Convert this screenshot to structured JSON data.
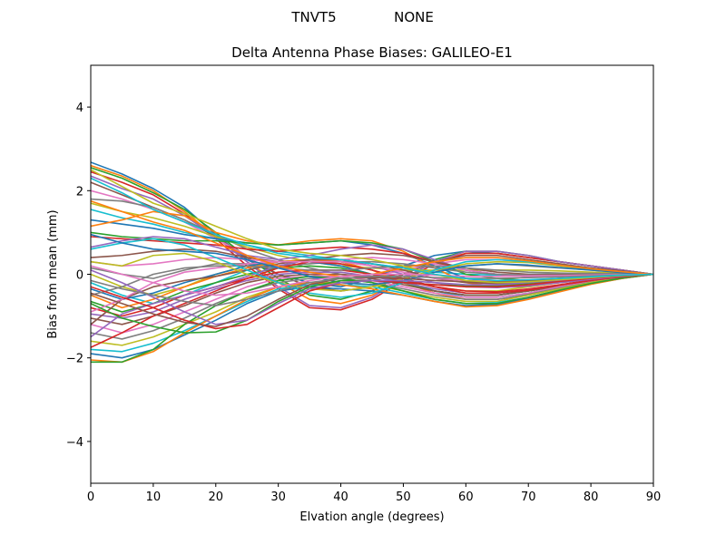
{
  "figure": {
    "suptitle_left": "TNVT5",
    "suptitle_right": "NONE"
  },
  "chart_data": {
    "type": "line",
    "title": "Delta Antenna Phase Biases: GALILEO-E1",
    "xlabel": "Elvation angle (degrees)",
    "ylabel": "Bias from mean (mm)",
    "xlim": [
      0,
      90
    ],
    "ylim": [
      -5,
      5
    ],
    "xticks": [
      0,
      10,
      20,
      30,
      40,
      50,
      60,
      70,
      80,
      90
    ],
    "yticks": [
      -4,
      -2,
      0,
      2,
      4
    ],
    "grid": false,
    "legend": "none",
    "x": [
      0,
      5,
      10,
      15,
      20,
      25,
      30,
      35,
      40,
      45,
      50,
      55,
      60,
      65,
      70,
      75,
      80,
      85,
      90
    ],
    "colors": [
      "#1f77b4",
      "#ff7f0e",
      "#2ca02c",
      "#d62728",
      "#9467bd",
      "#8c564b",
      "#e377c2",
      "#7f7f7f",
      "#bcbd22",
      "#17becf"
    ],
    "series": [
      {
        "values": [
          2.68,
          2.4,
          2.05,
          1.6,
          0.95,
          0.35,
          0.0,
          -0.2,
          -0.3,
          -0.1,
          0.2,
          0.45,
          0.55,
          0.5,
          0.4,
          0.3,
          0.2,
          0.1,
          0.0
        ]
      },
      {
        "values": [
          2.6,
          2.35,
          2.0,
          1.5,
          0.9,
          0.3,
          -0.2,
          -0.6,
          -0.7,
          -0.5,
          -0.1,
          0.3,
          0.5,
          0.5,
          0.4,
          0.3,
          0.2,
          0.1,
          0.0
        ]
      },
      {
        "values": [
          2.55,
          2.3,
          1.95,
          1.55,
          1.0,
          0.4,
          -0.1,
          -0.5,
          -0.6,
          -0.4,
          0.0,
          0.35,
          0.55,
          0.55,
          0.45,
          0.3,
          0.2,
          0.1,
          0.0
        ]
      },
      {
        "values": [
          2.45,
          2.2,
          1.9,
          1.45,
          0.85,
          0.2,
          -0.35,
          -0.8,
          -0.85,
          -0.6,
          -0.15,
          0.25,
          0.5,
          0.5,
          0.4,
          0.3,
          0.2,
          0.1,
          0.0
        ]
      },
      {
        "values": [
          2.35,
          2.05,
          1.8,
          1.4,
          0.9,
          0.3,
          -0.3,
          -0.75,
          -0.8,
          -0.55,
          -0.1,
          0.3,
          0.55,
          0.55,
          0.45,
          0.3,
          0.2,
          0.1,
          0.0
        ]
      },
      {
        "values": [
          2.2,
          1.9,
          1.6,
          1.3,
          0.9,
          0.4,
          0.0,
          -0.3,
          -0.4,
          -0.3,
          0.0,
          0.3,
          0.45,
          0.45,
          0.35,
          0.25,
          0.15,
          0.08,
          0.0
        ]
      },
      {
        "values": [
          2.0,
          1.8,
          1.55,
          1.25,
          0.85,
          0.45,
          0.15,
          0.0,
          -0.1,
          -0.05,
          0.1,
          0.25,
          0.35,
          0.35,
          0.3,
          0.2,
          0.12,
          0.06,
          0.0
        ]
      },
      {
        "values": [
          1.8,
          1.75,
          1.6,
          1.3,
          0.95,
          0.6,
          0.35,
          0.15,
          0.0,
          -0.05,
          0.0,
          0.1,
          0.2,
          0.25,
          0.2,
          0.15,
          0.1,
          0.05,
          0.0
        ]
      },
      {
        "values": [
          1.7,
          1.5,
          1.35,
          1.15,
          0.9,
          0.65,
          0.45,
          0.3,
          0.2,
          0.15,
          0.1,
          0.1,
          0.1,
          0.1,
          0.1,
          0.08,
          0.05,
          0.03,
          0.0
        ]
      },
      {
        "values": [
          1.55,
          1.35,
          1.2,
          1.0,
          0.85,
          0.7,
          0.55,
          0.45,
          0.35,
          0.25,
          0.15,
          0.05,
          0.0,
          -0.02,
          0.0,
          0.0,
          0.0,
          0.0,
          0.0
        ]
      },
      {
        "values": [
          1.3,
          1.2,
          1.1,
          0.95,
          0.85,
          0.75,
          0.7,
          0.75,
          0.8,
          0.7,
          0.5,
          0.2,
          -0.1,
          -0.2,
          -0.2,
          -0.15,
          -0.1,
          -0.05,
          0.0
        ]
      },
      {
        "values": [
          1.15,
          1.3,
          1.5,
          1.4,
          1.0,
          0.8,
          0.7,
          0.8,
          0.85,
          0.8,
          0.55,
          0.15,
          -0.2,
          -0.3,
          -0.3,
          -0.2,
          -0.12,
          -0.05,
          0.0
        ]
      },
      {
        "values": [
          1.0,
          0.9,
          0.85,
          0.8,
          0.8,
          0.75,
          0.7,
          0.75,
          0.8,
          0.75,
          0.6,
          0.3,
          0.0,
          -0.1,
          -0.15,
          -0.1,
          -0.07,
          -0.03,
          0.0
        ]
      },
      {
        "values": [
          0.9,
          0.85,
          0.8,
          0.75,
          0.7,
          0.6,
          0.55,
          0.6,
          0.65,
          0.6,
          0.5,
          0.3,
          0.1,
          0.0,
          -0.05,
          -0.05,
          -0.03,
          -0.01,
          0.0
        ]
      },
      {
        "values": [
          0.65,
          0.8,
          0.9,
          0.85,
          0.65,
          0.45,
          0.35,
          0.45,
          0.6,
          0.7,
          0.6,
          0.35,
          0.1,
          0.0,
          -0.05,
          -0.05,
          -0.03,
          -0.01,
          0.0
        ]
      },
      {
        "values": [
          0.4,
          0.45,
          0.55,
          0.6,
          0.55,
          0.4,
          0.3,
          0.35,
          0.45,
          0.5,
          0.45,
          0.3,
          0.15,
          0.05,
          0.0,
          0.0,
          0.0,
          0.0,
          0.0
        ]
      },
      {
        "values": [
          0.3,
          0.2,
          0.25,
          0.35,
          0.4,
          0.35,
          0.3,
          0.3,
          0.35,
          0.4,
          0.35,
          0.25,
          0.1,
          0.0,
          -0.05,
          -0.05,
          -0.02,
          -0.01,
          0.0
        ]
      },
      {
        "values": [
          0.15,
          0.0,
          -0.1,
          0.1,
          0.25,
          0.25,
          0.2,
          0.25,
          0.3,
          0.3,
          0.25,
          0.15,
          0.05,
          0.0,
          -0.02,
          -0.02,
          -0.01,
          0.0,
          0.0
        ]
      },
      {
        "values": [
          0.0,
          -0.3,
          -0.5,
          -0.3,
          0.0,
          0.2,
          0.3,
          0.3,
          0.25,
          0.1,
          -0.1,
          -0.3,
          -0.4,
          -0.4,
          -0.3,
          -0.2,
          -0.12,
          -0.05,
          0.0
        ]
      },
      {
        "values": [
          -0.2,
          -0.5,
          -0.7,
          -0.5,
          -0.2,
          0.1,
          0.3,
          0.35,
          0.3,
          0.1,
          -0.15,
          -0.4,
          -0.55,
          -0.55,
          -0.45,
          -0.3,
          -0.18,
          -0.08,
          0.0
        ]
      },
      {
        "values": [
          -0.35,
          -0.6,
          -0.45,
          -0.2,
          0.0,
          0.2,
          0.3,
          0.3,
          0.2,
          0.0,
          -0.2,
          -0.4,
          -0.5,
          -0.5,
          -0.4,
          -0.28,
          -0.16,
          -0.07,
          0.0
        ]
      },
      {
        "values": [
          -0.5,
          -0.8,
          -0.6,
          -0.3,
          -0.05,
          0.15,
          0.3,
          0.35,
          0.3,
          0.1,
          -0.2,
          -0.45,
          -0.6,
          -0.6,
          -0.5,
          -0.32,
          -0.18,
          -0.08,
          0.0
        ]
      },
      {
        "values": [
          -0.65,
          -0.9,
          -0.7,
          -0.4,
          -0.2,
          0.0,
          0.15,
          0.2,
          0.15,
          0.0,
          -0.2,
          -0.4,
          -0.5,
          -0.5,
          -0.4,
          -0.28,
          -0.16,
          -0.07,
          0.0
        ]
      },
      {
        "values": [
          -0.8,
          -1.0,
          -0.8,
          -0.5,
          -0.3,
          -0.1,
          0.05,
          0.1,
          0.1,
          0.0,
          -0.15,
          -0.3,
          -0.4,
          -0.42,
          -0.35,
          -0.25,
          -0.14,
          -0.06,
          0.0
        ]
      },
      {
        "values": [
          -0.95,
          -1.05,
          -0.9,
          -0.6,
          -0.35,
          -0.15,
          0.0,
          0.05,
          0.05,
          -0.05,
          -0.2,
          -0.35,
          -0.45,
          -0.45,
          -0.38,
          -0.26,
          -0.15,
          -0.06,
          0.0
        ]
      },
      {
        "values": [
          -1.05,
          -1.2,
          -1.0,
          -0.75,
          -0.45,
          -0.2,
          -0.05,
          0.0,
          0.0,
          -0.1,
          -0.25,
          -0.4,
          -0.5,
          -0.5,
          -0.4,
          -0.28,
          -0.16,
          -0.07,
          0.0
        ]
      },
      {
        "values": [
          -1.2,
          -1.4,
          -1.2,
          -0.9,
          -0.6,
          -0.3,
          -0.1,
          -0.05,
          -0.05,
          -0.15,
          -0.3,
          -0.45,
          -0.55,
          -0.55,
          -0.45,
          -0.3,
          -0.18,
          -0.08,
          0.0
        ]
      },
      {
        "values": [
          -1.4,
          -1.55,
          -1.35,
          -1.05,
          -0.7,
          -0.4,
          -0.2,
          -0.1,
          -0.1,
          -0.2,
          -0.35,
          -0.5,
          -0.6,
          -0.6,
          -0.48,
          -0.33,
          -0.19,
          -0.08,
          0.0
        ]
      },
      {
        "values": [
          -1.6,
          -1.7,
          -1.5,
          -1.2,
          -0.9,
          -0.55,
          -0.3,
          -0.2,
          -0.2,
          -0.25,
          -0.4,
          -0.55,
          -0.65,
          -0.65,
          -0.5,
          -0.35,
          -0.2,
          -0.08,
          0.0
        ]
      },
      {
        "values": [
          -1.8,
          -1.85,
          -1.65,
          -1.35,
          -1.0,
          -0.65,
          -0.35,
          -0.25,
          -0.25,
          -0.3,
          -0.45,
          -0.6,
          -0.7,
          -0.68,
          -0.55,
          -0.38,
          -0.22,
          -0.09,
          0.0
        ]
      },
      {
        "values": [
          -1.9,
          -2.0,
          -1.8,
          -1.45,
          -1.1,
          -0.7,
          -0.4,
          -0.3,
          -0.35,
          -0.4,
          -0.5,
          -0.65,
          -0.75,
          -0.72,
          -0.58,
          -0.4,
          -0.23,
          -0.1,
          0.0
        ]
      },
      {
        "values": [
          -2.05,
          -2.1,
          -1.85,
          -1.4,
          -1.0,
          -0.6,
          -0.3,
          -0.2,
          -0.25,
          -0.35,
          -0.5,
          -0.65,
          -0.78,
          -0.75,
          -0.6,
          -0.42,
          -0.24,
          -0.1,
          0.0
        ]
      },
      {
        "values": [
          -2.1,
          -2.1,
          -1.8,
          -1.2,
          -0.75,
          -0.4,
          -0.15,
          -0.05,
          -0.1,
          -0.2,
          -0.4,
          -0.6,
          -0.7,
          -0.7,
          -0.55,
          -0.38,
          -0.22,
          -0.09,
          0.0
        ]
      },
      {
        "values": [
          -1.75,
          -1.4,
          -1.0,
          -0.7,
          -0.4,
          -0.1,
          0.15,
          0.3,
          0.25,
          0.1,
          -0.1,
          -0.3,
          -0.45,
          -0.45,
          -0.38,
          -0.26,
          -0.15,
          -0.06,
          0.0
        ]
      },
      {
        "values": [
          -1.5,
          -0.95,
          -0.7,
          -0.5,
          -0.3,
          -0.05,
          0.2,
          0.35,
          0.35,
          0.2,
          0.0,
          -0.2,
          -0.3,
          -0.32,
          -0.28,
          -0.2,
          -0.12,
          -0.05,
          0.0
        ]
      },
      {
        "values": [
          -1.2,
          -0.6,
          -0.3,
          -0.15,
          -0.05,
          0.1,
          0.25,
          0.35,
          0.35,
          0.25,
          0.1,
          -0.1,
          -0.2,
          -0.22,
          -0.18,
          -0.13,
          -0.08,
          -0.03,
          0.0
        ]
      },
      {
        "values": [
          -0.9,
          -0.6,
          -0.2,
          0.05,
          0.15,
          0.25,
          0.3,
          0.3,
          0.3,
          0.2,
          0.05,
          -0.1,
          -0.15,
          -0.17,
          -0.14,
          -0.1,
          -0.06,
          -0.02,
          0.0
        ]
      },
      {
        "values": [
          -0.5,
          -0.3,
          0.0,
          0.15,
          0.2,
          0.2,
          0.15,
          0.1,
          0.1,
          0.15,
          0.2,
          0.2,
          0.15,
          0.1,
          0.05,
          0.03,
          0.02,
          0.01,
          0.0
        ]
      },
      {
        "values": [
          0.3,
          0.2,
          0.45,
          0.5,
          0.3,
          0.0,
          -0.2,
          -0.35,
          -0.4,
          -0.3,
          -0.1,
          0.1,
          0.25,
          0.3,
          0.28,
          0.2,
          0.12,
          0.05,
          0.0
        ]
      },
      {
        "values": [
          0.6,
          0.75,
          0.85,
          0.7,
          0.4,
          0.1,
          -0.2,
          -0.45,
          -0.55,
          -0.45,
          -0.2,
          0.1,
          0.3,
          0.35,
          0.3,
          0.22,
          0.13,
          0.06,
          0.0
        ]
      },
      {
        "values": [
          0.95,
          0.75,
          0.6,
          0.55,
          0.5,
          0.35,
          0.15,
          -0.05,
          -0.2,
          -0.25,
          -0.15,
          0.05,
          0.2,
          0.25,
          0.22,
          0.16,
          0.1,
          0.04,
          0.0
        ]
      },
      {
        "values": [
          1.75,
          1.5,
          1.25,
          1.05,
          0.75,
          0.45,
          0.2,
          0.05,
          -0.05,
          0.0,
          0.15,
          0.3,
          0.4,
          0.4,
          0.32,
          0.22,
          0.13,
          0.06,
          0.0
        ]
      },
      {
        "values": [
          -0.7,
          -1.05,
          -1.25,
          -1.4,
          -1.38,
          -1.1,
          -0.65,
          -0.3,
          -0.15,
          -0.15,
          -0.2,
          -0.25,
          -0.28,
          -0.27,
          -0.22,
          -0.15,
          -0.09,
          -0.04,
          0.0
        ]
      },
      {
        "values": [
          -0.3,
          -0.55,
          -0.8,
          -1.1,
          -1.3,
          -1.2,
          -0.8,
          -0.4,
          -0.2,
          -0.15,
          -0.2,
          -0.25,
          -0.3,
          -0.3,
          -0.25,
          -0.17,
          -0.1,
          -0.04,
          0.0
        ]
      },
      {
        "values": [
          0.1,
          -0.2,
          -0.55,
          -0.9,
          -1.2,
          -1.1,
          -0.7,
          -0.35,
          -0.2,
          -0.15,
          -0.15,
          -0.2,
          -0.25,
          -0.25,
          -0.2,
          -0.14,
          -0.08,
          -0.03,
          0.0
        ]
      },
      {
        "values": [
          -0.45,
          -0.7,
          -0.95,
          -1.15,
          -1.25,
          -1.0,
          -0.6,
          -0.25,
          -0.1,
          -0.08,
          -0.1,
          -0.15,
          -0.18,
          -0.18,
          -0.15,
          -0.1,
          -0.06,
          -0.02,
          0.0
        ]
      },
      {
        "values": [
          0.2,
          0.0,
          -0.2,
          -0.4,
          -0.5,
          -0.45,
          -0.3,
          -0.15,
          -0.05,
          0.0,
          0.0,
          -0.02,
          -0.05,
          -0.05,
          -0.04,
          -0.03,
          -0.02,
          -0.01,
          0.0
        ]
      },
      {
        "values": [
          -0.15,
          -0.35,
          -0.5,
          -0.65,
          -0.75,
          -0.6,
          -0.4,
          -0.2,
          -0.1,
          -0.05,
          -0.05,
          -0.08,
          -0.1,
          -0.1,
          -0.08,
          -0.06,
          -0.04,
          -0.02,
          0.0
        ]
      },
      {
        "values": [
          2.5,
          2.1,
          1.7,
          1.45,
          1.15,
          0.85,
          0.6,
          0.5,
          0.45,
          0.35,
          0.2,
          0.0,
          -0.15,
          -0.2,
          -0.18,
          -0.13,
          -0.08,
          -0.03,
          0.0
        ]
      },
      {
        "values": [
          2.3,
          1.95,
          1.55,
          1.25,
          0.95,
          0.7,
          0.5,
          0.4,
          0.35,
          0.25,
          0.15,
          0.0,
          -0.1,
          -0.15,
          -0.13,
          -0.1,
          -0.06,
          -0.02,
          0.0
        ]
      }
    ]
  }
}
